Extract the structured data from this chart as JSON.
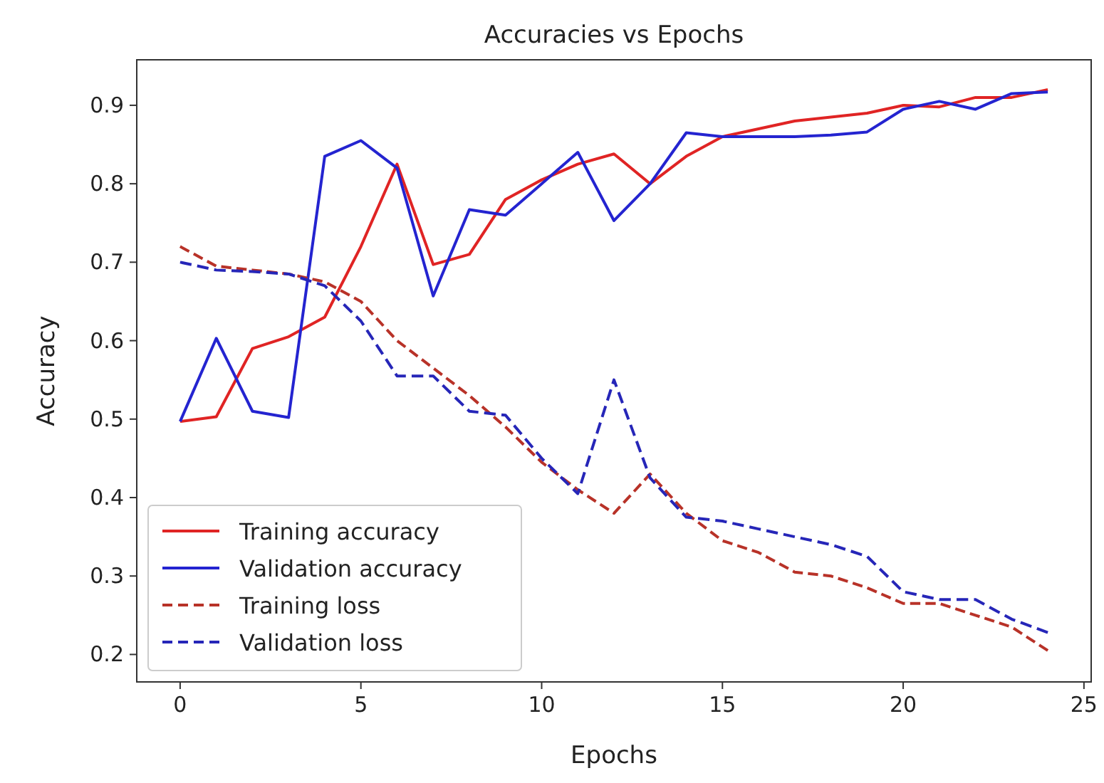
{
  "chart_data": {
    "type": "line",
    "title": "Accuracies vs Epochs",
    "xlabel": "Epochs",
    "ylabel": "Accuracy",
    "x": [
      0,
      1,
      2,
      3,
      4,
      5,
      6,
      7,
      8,
      9,
      10,
      11,
      12,
      13,
      14,
      15,
      16,
      17,
      18,
      19,
      20,
      21,
      22,
      23,
      24
    ],
    "series": [
      {
        "name": "Training accuracy",
        "color": "#e02424",
        "line_style": "solid",
        "values": [
          0.497,
          0.503,
          0.59,
          0.605,
          0.63,
          0.72,
          0.825,
          0.697,
          0.71,
          0.78,
          0.805,
          0.825,
          0.838,
          0.8,
          0.835,
          0.86,
          0.87,
          0.88,
          0.885,
          0.89,
          0.9,
          0.898,
          0.91,
          0.91,
          0.92
        ]
      },
      {
        "name": "Validation accuracy",
        "color": "#2424d0",
        "line_style": "solid",
        "values": [
          0.497,
          0.603,
          0.51,
          0.502,
          0.835,
          0.855,
          0.82,
          0.657,
          0.767,
          0.76,
          0.8,
          0.84,
          0.753,
          0.8,
          0.865,
          0.86,
          0.86,
          0.86,
          0.862,
          0.866,
          0.895,
          0.905,
          0.895,
          0.915,
          0.917
        ]
      },
      {
        "name": "Training loss",
        "color": "#b83228",
        "line_style": "dashed",
        "values": [
          0.72,
          0.695,
          0.69,
          0.685,
          0.675,
          0.65,
          0.6,
          0.565,
          0.53,
          0.49,
          0.445,
          0.41,
          0.38,
          0.43,
          0.38,
          0.345,
          0.33,
          0.305,
          0.3,
          0.285,
          0.265,
          0.265,
          0.25,
          0.235,
          0.205
        ]
      },
      {
        "name": "Validation loss",
        "color": "#2626b8",
        "line_style": "dashed",
        "values": [
          0.7,
          0.69,
          0.688,
          0.685,
          0.67,
          0.625,
          0.555,
          0.555,
          0.51,
          0.505,
          0.45,
          0.405,
          0.55,
          0.425,
          0.375,
          0.37,
          0.36,
          0.35,
          0.34,
          0.325,
          0.28,
          0.27,
          0.27,
          0.245,
          0.228
        ]
      }
    ],
    "xlim": [
      -1.2,
      25.2
    ],
    "xticks": [
      0,
      5,
      10,
      15,
      20,
      25
    ],
    "ylim": [
      0.165,
      0.958
    ],
    "yticks": [
      0.2,
      0.3,
      0.4,
      0.5,
      0.6,
      0.7,
      0.8,
      0.9
    ],
    "legend": "bottom left",
    "grid": false,
    "marker": "none"
  }
}
